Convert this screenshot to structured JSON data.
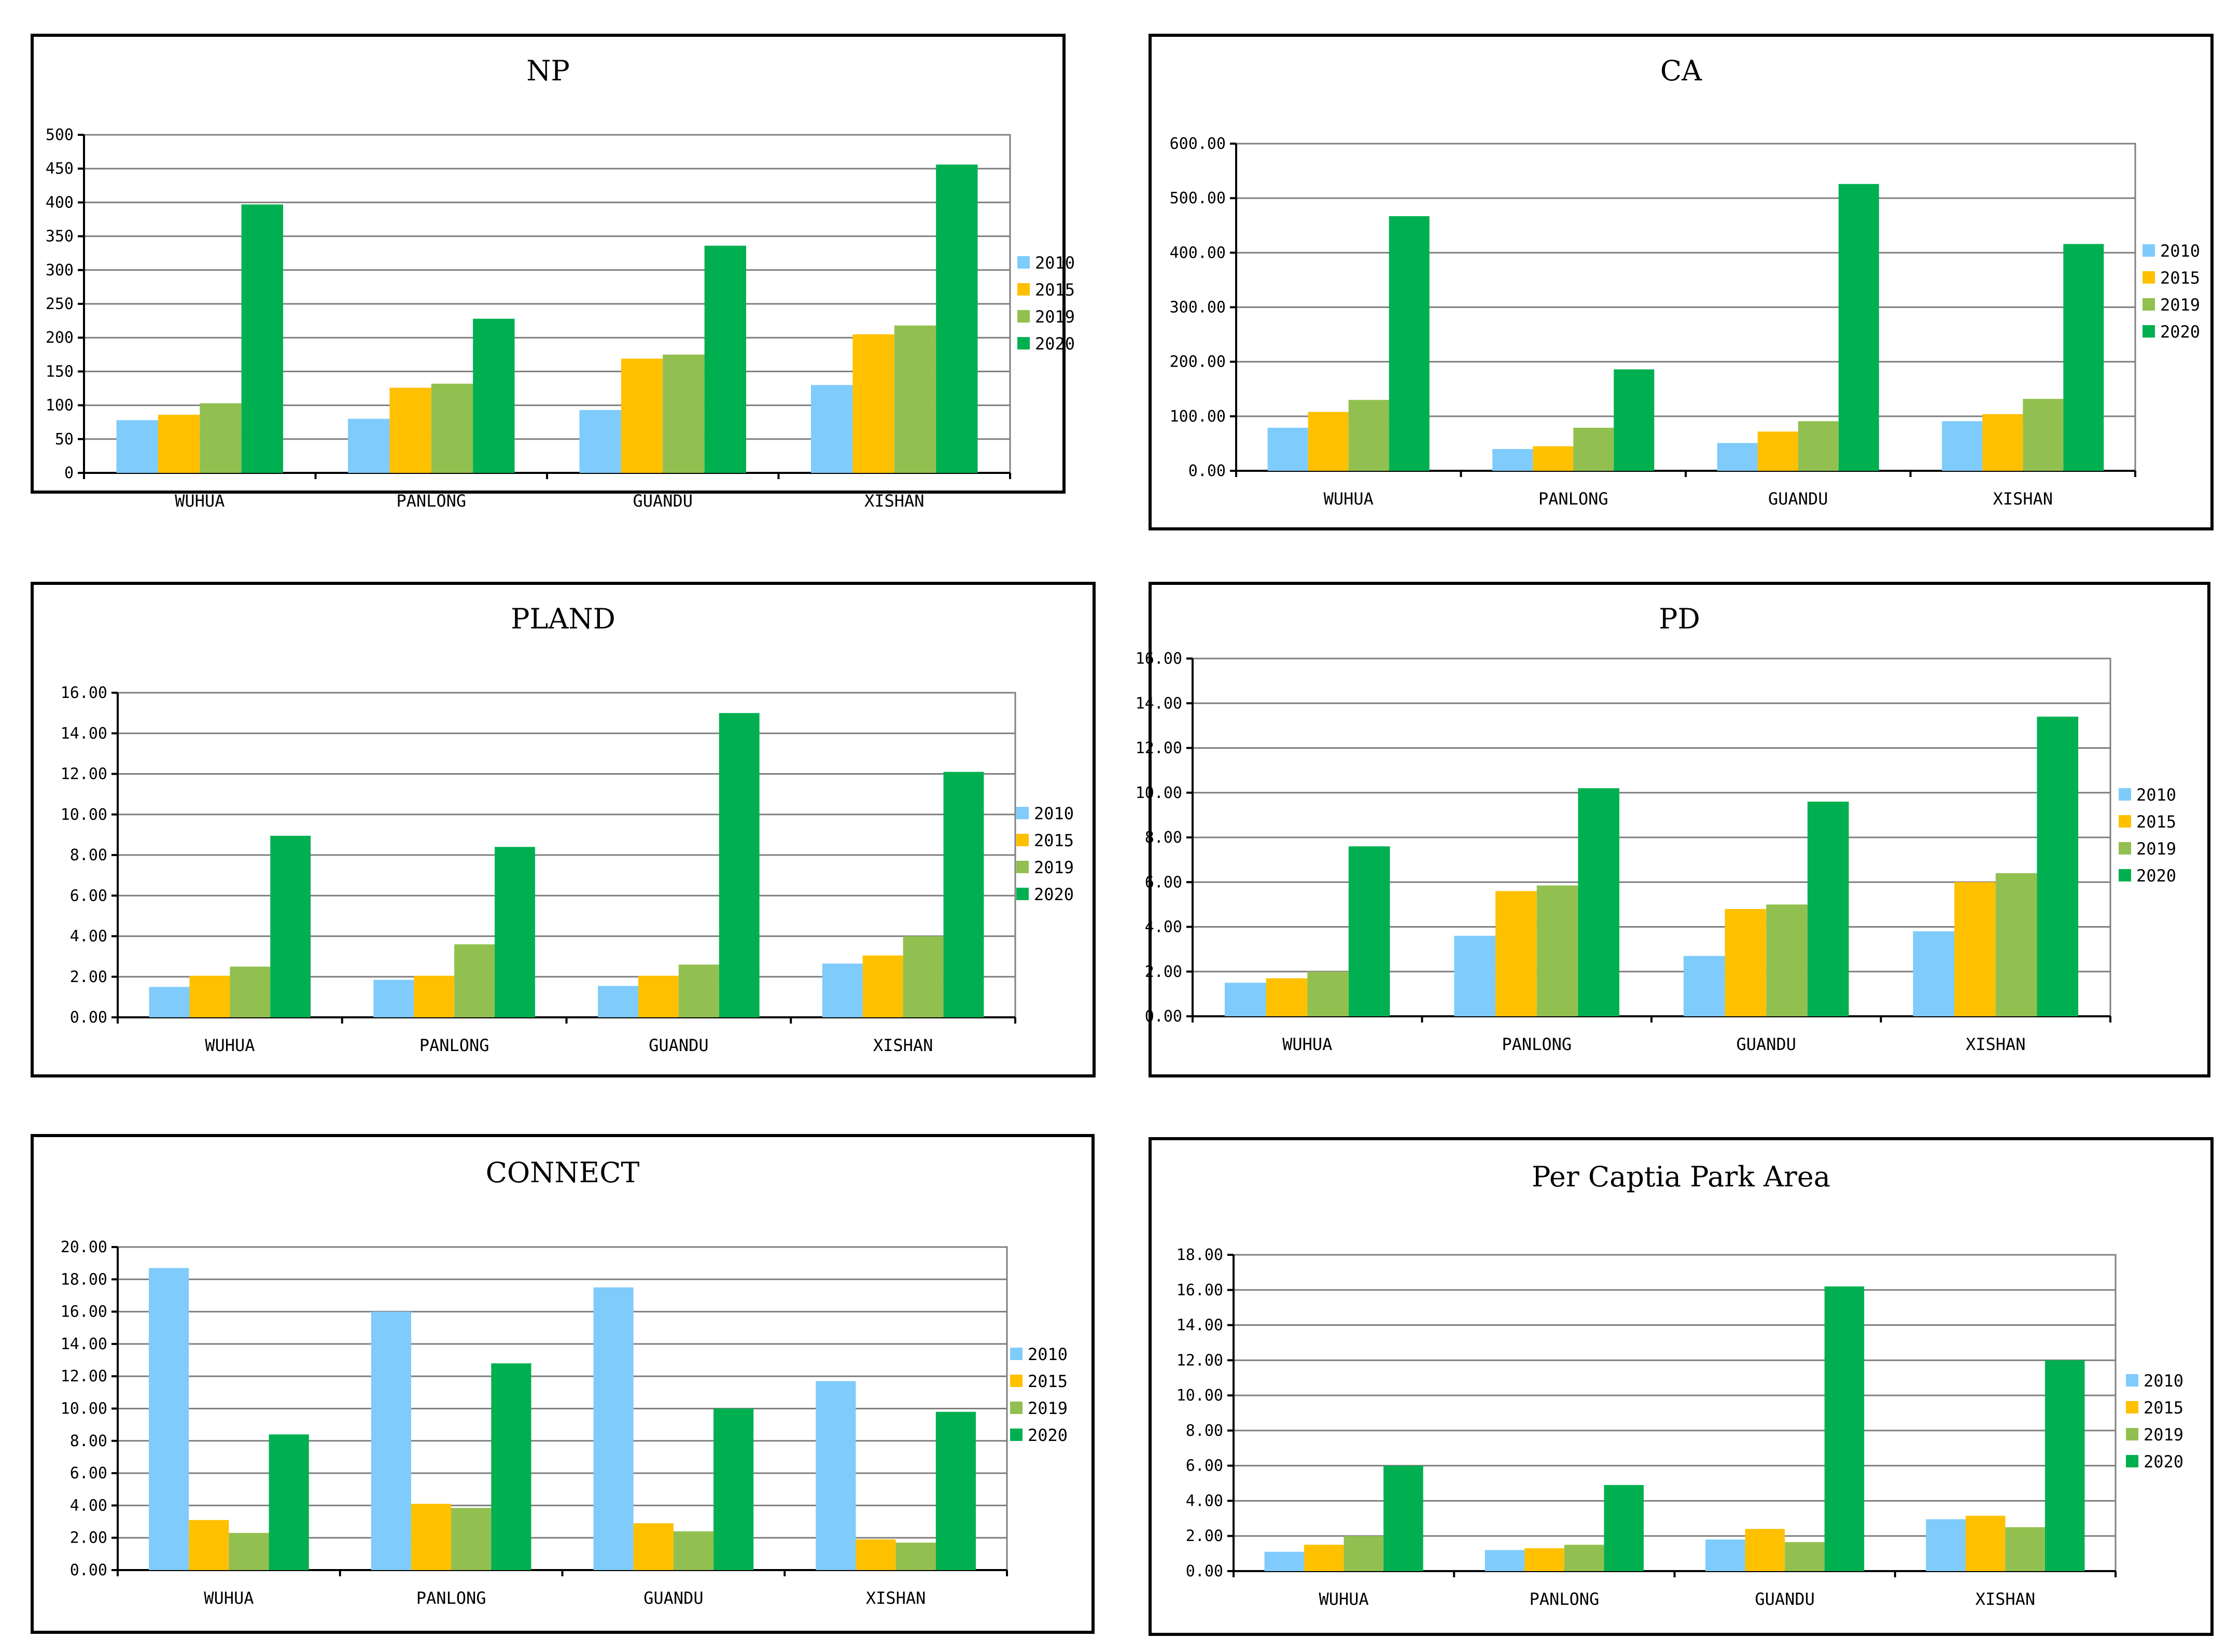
{
  "colors": {
    "2010": "#7fcbfb",
    "2015": "#ffc000",
    "2019": "#92c050",
    "2020": "#00b050"
  },
  "chart_data": [
    {
      "type": "bar",
      "title": "NP",
      "categories": [
        "WUHUA",
        "PANLONG",
        "GUANDU",
        "XISHAN"
      ],
      "series": [
        {
          "name": "2010",
          "values": [
            78,
            80,
            93,
            130
          ]
        },
        {
          "name": "2015",
          "values": [
            86,
            126,
            169,
            205
          ]
        },
        {
          "name": "2019",
          "values": [
            103,
            132,
            175,
            218
          ]
        },
        {
          "name": "2020",
          "values": [
            397,
            228,
            336,
            456
          ]
        }
      ],
      "ylim": [
        0,
        500
      ],
      "yticks": [
        0,
        50,
        100,
        150,
        200,
        250,
        300,
        350,
        400,
        450,
        500
      ],
      "ytick_labels": [
        "0",
        "50",
        "100",
        "150",
        "200",
        "250",
        "300",
        "350",
        "400",
        "450",
        "500"
      ],
      "legend": "right",
      "grid": true,
      "xlabel": "",
      "ylabel": ""
    },
    {
      "type": "bar",
      "title": "CA",
      "categories": [
        "WUHUA",
        "PANLONG",
        "GUANDU",
        "XISHAN"
      ],
      "series": [
        {
          "name": "2010",
          "values": [
            79,
            40,
            51,
            91
          ]
        },
        {
          "name": "2015",
          "values": [
            108,
            45,
            72,
            104
          ]
        },
        {
          "name": "2019",
          "values": [
            130,
            79,
            91,
            132
          ]
        },
        {
          "name": "2020",
          "values": [
            467,
            186,
            526,
            416
          ]
        }
      ],
      "ylim": [
        0,
        600
      ],
      "yticks": [
        0,
        100,
        200,
        300,
        400,
        500,
        600
      ],
      "ytick_labels": [
        "0.00",
        "100.00",
        "200.00",
        "300.00",
        "400.00",
        "500.00",
        "600.00"
      ],
      "legend": "right",
      "grid": true,
      "xlabel": "",
      "ylabel": ""
    },
    {
      "type": "bar",
      "title": "PLAND",
      "categories": [
        "WUHUA",
        "PANLONG",
        "GUANDU",
        "XISHAN"
      ],
      "series": [
        {
          "name": "2010",
          "values": [
            1.5,
            1.85,
            1.55,
            2.65
          ]
        },
        {
          "name": "2015",
          "values": [
            2.05,
            2.05,
            2.05,
            3.05
          ]
        },
        {
          "name": "2019",
          "values": [
            2.5,
            3.6,
            2.6,
            4.0
          ]
        },
        {
          "name": "2020",
          "values": [
            8.95,
            8.4,
            15.0,
            12.1
          ]
        }
      ],
      "ylim": [
        0,
        16
      ],
      "yticks": [
        0,
        2,
        4,
        6,
        8,
        10,
        12,
        14,
        16
      ],
      "ytick_labels": [
        "0.00",
        "2.00",
        "4.00",
        "6.00",
        "8.00",
        "10.00",
        "12.00",
        "14.00",
        "16.00"
      ],
      "legend": "right",
      "grid": true,
      "xlabel": "",
      "ylabel": ""
    },
    {
      "type": "bar",
      "title": "PD",
      "categories": [
        "WUHUA",
        "PANLONG",
        "GUANDU",
        "XISHAN"
      ],
      "series": [
        {
          "name": "2010",
          "values": [
            1.5,
            3.6,
            2.7,
            3.8
          ]
        },
        {
          "name": "2015",
          "values": [
            1.7,
            5.6,
            4.8,
            6.0
          ]
        },
        {
          "name": "2019",
          "values": [
            2.0,
            5.85,
            5.0,
            6.4
          ]
        },
        {
          "name": "2020",
          "values": [
            7.6,
            10.2,
            9.6,
            13.4
          ]
        }
      ],
      "ylim": [
        0,
        16
      ],
      "yticks": [
        0,
        2,
        4,
        6,
        8,
        10,
        12,
        14,
        16
      ],
      "ytick_labels": [
        "0.00",
        "2.00",
        "4.00",
        "6.00",
        "8.00",
        "10.00",
        "12.00",
        "14.00",
        "16.00"
      ],
      "legend": "right",
      "grid": true,
      "xlabel": "",
      "ylabel": ""
    },
    {
      "type": "bar",
      "title": "CONNECT",
      "categories": [
        "WUHUA",
        "PANLONG",
        "GUANDU",
        "XISHAN"
      ],
      "series": [
        {
          "name": "2010",
          "values": [
            18.7,
            16.0,
            17.5,
            11.7
          ]
        },
        {
          "name": "2015",
          "values": [
            3.1,
            4.1,
            2.9,
            1.9
          ]
        },
        {
          "name": "2019",
          "values": [
            2.3,
            3.85,
            2.4,
            1.7
          ]
        },
        {
          "name": "2020",
          "values": [
            8.4,
            12.8,
            10.0,
            9.8
          ]
        }
      ],
      "ylim": [
        0,
        20
      ],
      "yticks": [
        0,
        2,
        4,
        6,
        8,
        10,
        12,
        14,
        16,
        18,
        20
      ],
      "ytick_labels": [
        "0.00",
        "2.00",
        "4.00",
        "6.00",
        "8.00",
        "10.00",
        "12.00",
        "14.00",
        "16.00",
        "18.00",
        "20.00"
      ],
      "legend": "right",
      "grid": true,
      "xlabel": "",
      "ylabel": ""
    },
    {
      "type": "bar",
      "title": "Per Captia Park Area",
      "categories": [
        "WUHUA",
        "PANLONG",
        "GUANDU",
        "XISHAN"
      ],
      "series": [
        {
          "name": "2010",
          "values": [
            1.1,
            1.2,
            1.8,
            2.95
          ]
        },
        {
          "name": "2015",
          "values": [
            1.5,
            1.3,
            2.4,
            3.15
          ]
        },
        {
          "name": "2019",
          "values": [
            2.0,
            1.5,
            1.65,
            2.5
          ]
        },
        {
          "name": "2020",
          "values": [
            6.0,
            4.9,
            16.2,
            12.0
          ]
        }
      ],
      "ylim": [
        0,
        18
      ],
      "yticks": [
        0,
        2,
        4,
        6,
        8,
        10,
        12,
        14,
        16,
        18
      ],
      "ytick_labels": [
        "0.00",
        "2.00",
        "4.00",
        "6.00",
        "8.00",
        "10.00",
        "12.00",
        "14.00",
        "16.00",
        "18.00"
      ],
      "legend": "right",
      "grid": true,
      "xlabel": "",
      "ylabel": ""
    }
  ]
}
